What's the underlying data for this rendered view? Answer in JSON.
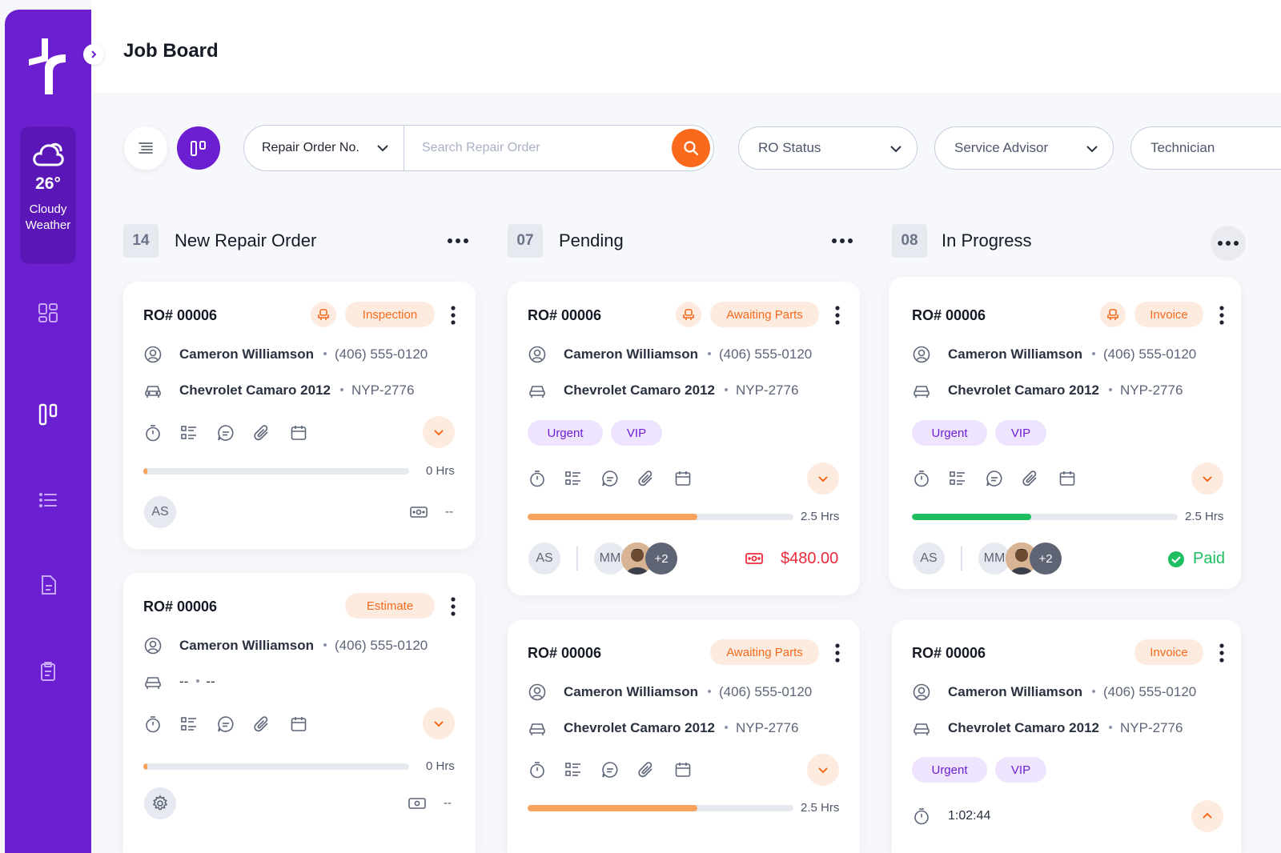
{
  "page_title": "Job Board",
  "weather": {
    "temp": "26°",
    "condition_line1": "Cloudy",
    "condition_line2": "Weather",
    "icon": "cloud-icon"
  },
  "nav": [
    "dashboard-icon",
    "board-icon",
    "list-icon",
    "document-icon",
    "clipboard-icon"
  ],
  "search": {
    "field_select": "Repair Order No.",
    "placeholder": "Search Repair Order"
  },
  "filters": [
    "RO Status",
    "Service Advisor",
    "Technician"
  ],
  "columns": [
    {
      "count": "14",
      "title": "New Repair Order",
      "cards": [
        {
          "ro": "RO# 00006",
          "status": "Inspection",
          "customer": "Cameron Williamson",
          "phone": "(406) 555-0120",
          "vehicle": "Chevrolet Camaro 2012",
          "plate": "NYP-2776",
          "hours": "0 Hrs",
          "progress": 0.01,
          "advisor": "AS",
          "amount": "--"
        },
        {
          "ro": "RO# 00006",
          "status": "Estimate",
          "customer": "Cameron Williamson",
          "phone": "(406) 555-0120",
          "vehicle": "--",
          "plate": "--",
          "hours": "0 Hrs",
          "progress": 0.01,
          "amount": "--"
        }
      ]
    },
    {
      "count": "07",
      "title": "Pending",
      "cards": [
        {
          "ro": "RO# 00006",
          "status": "Awaiting Parts",
          "customer": "Cameron Williamson",
          "phone": "(406) 555-0120",
          "vehicle": "Chevrolet Camaro 2012",
          "plate": "NYP-2776",
          "tags": [
            "Urgent",
            "VIP"
          ],
          "hours": "2.5 Hrs",
          "progress": 0.64,
          "advisor": "AS",
          "tech": "MM",
          "more": "+2",
          "amount": "$480.00"
        },
        {
          "ro": "RO# 00006",
          "status": "Awaiting Parts",
          "customer": "Cameron Williamson",
          "phone": "(406) 555-0120",
          "vehicle": "Chevrolet Camaro 2012",
          "plate": "NYP-2776",
          "hours": "2.5 Hrs",
          "progress": 0.64
        }
      ]
    },
    {
      "count": "08",
      "title": "In Progress",
      "cards": [
        {
          "ro": "RO# 00006",
          "status": "Invoice",
          "customer": "Cameron Williamson",
          "phone": "(406) 555-0120",
          "vehicle": "Chevrolet Camaro 2012",
          "plate": "NYP-2776",
          "tags": [
            "Urgent",
            "VIP"
          ],
          "hours": "2.5 Hrs",
          "progress": 0.45,
          "advisor": "AS",
          "tech": "MM",
          "more": "+2",
          "payment": "Paid"
        },
        {
          "ro": "RO# 00006",
          "status": "Invoice",
          "customer": "Cameron Williamson",
          "phone": "(406) 555-0120",
          "vehicle": "Chevrolet Camaro 2012",
          "plate": "NYP-2776",
          "tags": [
            "Urgent",
            "VIP"
          ],
          "timer": "1:02:44"
        }
      ]
    }
  ],
  "colors": {
    "brand": "#6c1fd1",
    "accent": "#fb6a1c",
    "progress_pending": "#f7a35c",
    "progress_done": "#1dbf61",
    "money": "#ee2a3a"
  }
}
